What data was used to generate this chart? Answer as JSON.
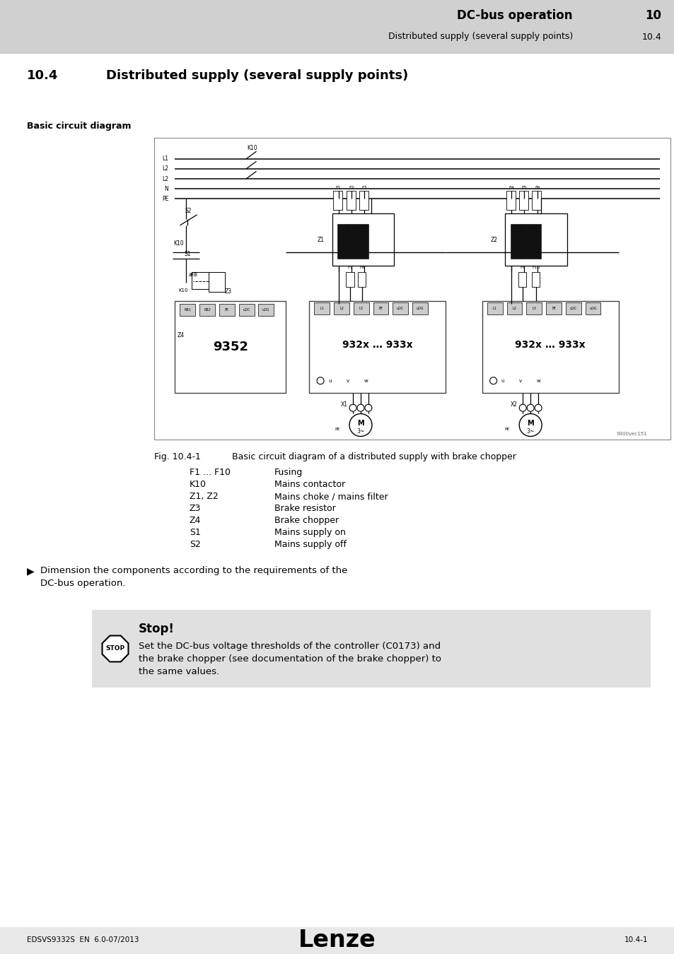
{
  "page_bg": "#e8e8e8",
  "content_bg": "#ffffff",
  "header_bg": "#d0d0d0",
  "stop_bg": "#e0e0e0",
  "header_title": "DC-bus operation",
  "header_chapter": "10",
  "header_subtitle": "Distributed supply (several supply points)",
  "header_section": "10.4",
  "section_num": "10.4",
  "section_title": "Distributed supply (several supply points)",
  "sidebar_label": "Basic circuit diagram",
  "fig_caption_left": "Fig. 10.4-1",
  "fig_caption_right": "Basic circuit diagram of a distributed supply with brake chopper",
  "legend_items": [
    [
      "F1 ... F10",
      "Fusing"
    ],
    [
      "K10",
      "Mains contactor"
    ],
    [
      "Z1, Z2",
      "Mains choke / mains filter"
    ],
    [
      "Z3",
      "Brake resistor"
    ],
    [
      "Z4",
      "Brake chopper"
    ],
    [
      "S1",
      "Mains supply on"
    ],
    [
      "S2",
      "Mains supply off"
    ]
  ],
  "bullet_text": "Dimension the components according to the requirements of the\nDC-bus operation.",
  "stop_title": "Stop!",
  "stop_body": "Set the DC-bus voltage thresholds of the controller (C0173) and\nthe brake chopper (see documentation of the brake chopper) to\nthe same values.",
  "footer_left": "EDSVS9332S  EN  6.0-07/2013",
  "footer_center": "Lenze",
  "footer_right": "10.4-1"
}
